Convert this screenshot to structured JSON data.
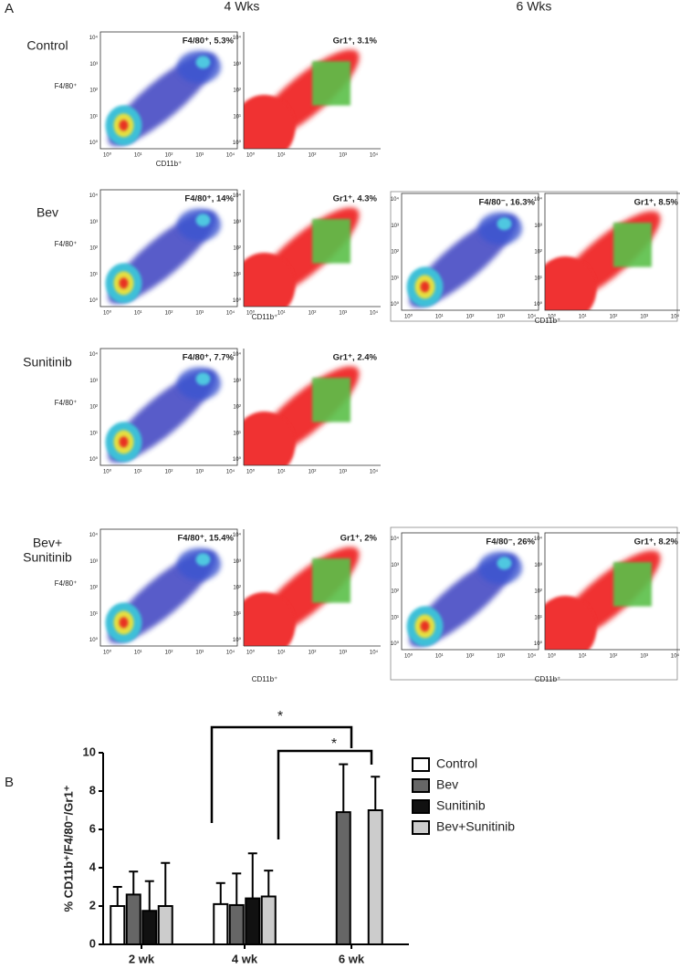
{
  "panel_a": {
    "label": "A",
    "columns": [
      "4 Wks",
      "6 Wks"
    ],
    "x_label": "CD11b⁺",
    "y_label": "F4/80⁺",
    "log_ticks": [
      "10⁰",
      "10¹",
      "10²",
      "10³",
      "10⁴"
    ],
    "rows": [
      {
        "label": [
          "Control"
        ],
        "wk4": [
          "F4/80⁺, 5.3%",
          "Gr1⁺, 3.1%"
        ]
      },
      {
        "label": [
          "Bev"
        ],
        "wk4": [
          "F4/80⁺, 14%",
          "Gr1⁺, 4.3%"
        ],
        "wk6": [
          "F4/80⁻, 16.3%",
          "Gr1⁺, 8.5%"
        ]
      },
      {
        "label": [
          "Sunitinib"
        ],
        "wk4": [
          "F4/80⁺, 7.7%",
          "Gr1⁺, 2.4%"
        ]
      },
      {
        "label": [
          "Bev+",
          "Sunitinib"
        ],
        "wk4": [
          "F4/80⁺, 15.4%",
          "Gr1⁺, 2%"
        ],
        "wk6": [
          "F4/80⁻, 26%",
          "Gr1⁺, 8.2%"
        ]
      }
    ]
  },
  "panel_b": {
    "label": "B",
    "annotations": [
      "*",
      "*"
    ]
  },
  "chart_data": {
    "type": "bar",
    "y_label": "% CD11b⁺/F4/80⁻/Gr1⁺",
    "categories": [
      "2 wk",
      "4 wk",
      "6 wk"
    ],
    "series": [
      {
        "name": "Control",
        "color": "#ffffff",
        "values": [
          2.0,
          2.1,
          null
        ],
        "errors": [
          1.0,
          1.1,
          null
        ]
      },
      {
        "name": "Bev",
        "color": "#666666",
        "values": [
          2.6,
          2.05,
          6.9
        ],
        "errors": [
          1.2,
          1.65,
          2.5
        ]
      },
      {
        "name": "Sunitinib",
        "color": "#111111",
        "values": [
          1.75,
          2.4,
          null
        ],
        "errors": [
          1.55,
          2.35,
          null
        ]
      },
      {
        "name": "Bev+Sunitinib",
        "color": "#cccccc",
        "values": [
          2.0,
          2.5,
          7.0
        ],
        "errors": [
          2.25,
          1.35,
          1.75
        ]
      }
    ],
    "ylim": [
      0,
      10
    ],
    "yticks": [
      0,
      2,
      4,
      6,
      8,
      10
    ],
    "legend": "right"
  }
}
